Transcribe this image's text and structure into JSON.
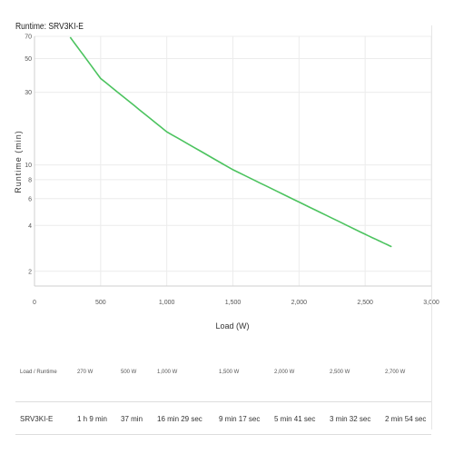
{
  "title": "Runtime: SRV3KI-E",
  "chart_data": {
    "type": "line",
    "xlabel": "Load (W)",
    "ylabel": "Runtime (min)",
    "xlim": [
      0,
      3000
    ],
    "ylim": [
      1.6,
      70
    ],
    "yscale": "log",
    "grid": true,
    "xticks": [
      0,
      500,
      1000,
      1500,
      2000,
      2500,
      3000
    ],
    "xtick_labels": [
      "0",
      "500",
      "1,000",
      "1,500",
      "2,000",
      "2,500",
      "3,000"
    ],
    "yticks": [
      2,
      4,
      6,
      8,
      10,
      30,
      50,
      70
    ],
    "ytick_labels": [
      "2",
      "4",
      "6",
      "8",
      "10",
      "30",
      "50",
      "70"
    ],
    "color": "#4cc35f",
    "x": [
      270,
      500,
      1000,
      1500,
      2000,
      2500,
      2700
    ],
    "y": [
      69,
      37,
      16.5,
      9.3,
      5.7,
      3.5,
      2.9
    ]
  },
  "table": {
    "header": [
      "Load / Runtime",
      "270 W",
      "500 W",
      "1,000 W",
      "1,500 W",
      "2,000 W",
      "2,500 W",
      "2,700 W"
    ],
    "rows": [
      [
        "SRV3KI-E",
        "1 h 9 min",
        "37 min",
        "16 min 29 sec",
        "9 min 17 sec",
        "5 min 41 sec",
        "3 min 32 sec",
        "2 min 54 sec"
      ]
    ]
  }
}
